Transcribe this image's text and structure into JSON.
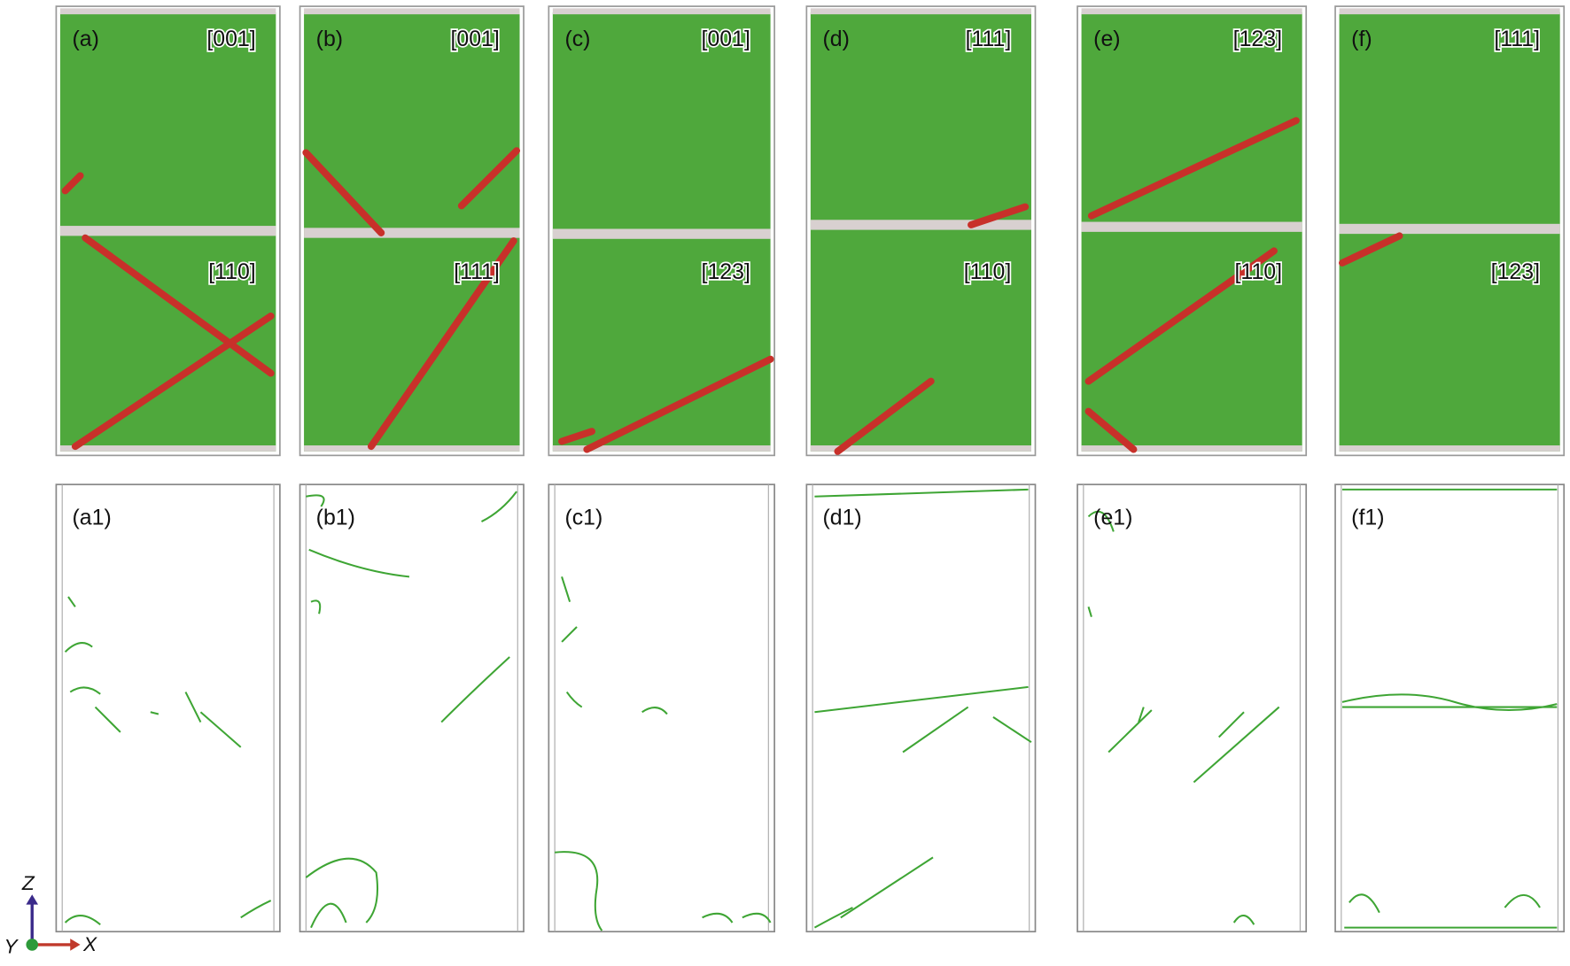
{
  "panels": [
    {
      "label": "(a)",
      "top_orientation": "[001]",
      "bottom_orientation": "[110]"
    },
    {
      "label": "(b)",
      "top_orientation": "[001]",
      "bottom_orientation": "[111]"
    },
    {
      "label": "(c)",
      "top_orientation": "[001]",
      "bottom_orientation": "[123]"
    },
    {
      "label": "(d)",
      "top_orientation": "[111]",
      "bottom_orientation": "[110]"
    },
    {
      "label": "(e)",
      "top_orientation": "[123]",
      "bottom_orientation": "[110]"
    },
    {
      "label": "(f)",
      "top_orientation": "[111]",
      "bottom_orientation": "[123]"
    }
  ],
  "dislocation_panels": [
    {
      "label": "(a1)"
    },
    {
      "label": "(b1)"
    },
    {
      "label": "(c1)"
    },
    {
      "label": "(d1)"
    },
    {
      "label": "(e1)"
    },
    {
      "label": "(f1)"
    }
  ],
  "axes": {
    "z": "Z",
    "x": "X",
    "y": "Y"
  }
}
